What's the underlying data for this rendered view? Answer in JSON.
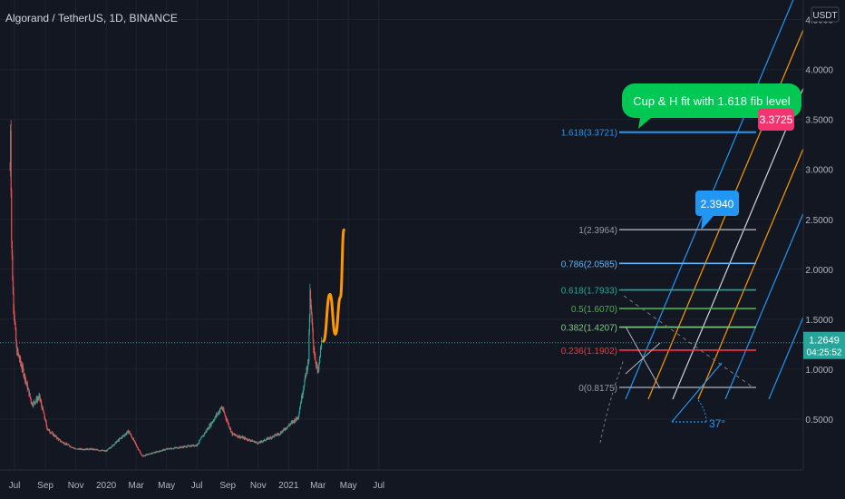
{
  "header": {
    "title": "Algorand / TetherUS, 1D, BINANCE"
  },
  "price_axis": {
    "currency_label": "USDT",
    "current_price": "1.2649",
    "countdown": "04:25:52"
  },
  "annotations": {
    "callout_text": "Cup & H fit  with 1.618  fib level",
    "target_badge": "3.3725",
    "peak_badge": "2.3940",
    "angle_label": "37°"
  },
  "fib_levels": [
    {
      "label": "1.618(3.3721)",
      "price": 3.3721,
      "color": "#2196f3"
    },
    {
      "label": "1(2.3964)",
      "price": 2.3964,
      "color": "#9598a1"
    },
    {
      "label": "0.786(2.0585)",
      "price": 2.0585,
      "color": "#64b5f6"
    },
    {
      "label": "0.618(1.7933)",
      "price": 1.7933,
      "color": "#26a69a"
    },
    {
      "label": "0.5(1.6070)",
      "price": 1.607,
      "color": "#4caf50"
    },
    {
      "label": "0.382(1.4207)",
      "price": 1.4207,
      "color": "#81c784"
    },
    {
      "label": "0.236(1.1902)",
      "price": 1.1902,
      "color": "#f23645"
    },
    {
      "label": "0(0.8175)",
      "price": 0.8175,
      "color": "#9598a1"
    }
  ],
  "colors": {
    "background": "#131722",
    "up": "#26a69a",
    "down": "#ef5350",
    "fib_channel_outer": "#2196f3",
    "fib_channel_inner": "#ff9800",
    "fib_channel_mid": "#d1d4dc",
    "projection_path": "#ff9800",
    "callout": "#00c853",
    "target_badge": "#f23570",
    "peak_badge": "#2196f3",
    "price_tag": "#26a69a"
  },
  "chart_data": {
    "type": "candlestick",
    "title": "Algorand / TetherUS, 1D, BINANCE",
    "ylim": [
      0,
      4.95
    ],
    "y_ticks": [
      "0.5000",
      "1.0000",
      "1.5000",
      "2.0000",
      "2.5000",
      "3.0000",
      "3.5000",
      "4.0000",
      "4.5000"
    ],
    "x_ticks": [
      "Jul",
      "Sep",
      "Nov",
      "2020",
      "Mar",
      "May",
      "Jul",
      "Sep",
      "Nov",
      "2021",
      "Mar",
      "May",
      "Jul"
    ],
    "price_path": [
      {
        "date": "2019-06-22",
        "price": 3.0
      },
      {
        "date": "2019-06-23",
        "price": 3.45
      },
      {
        "date": "2019-06-25",
        "price": 2.3
      },
      {
        "date": "2019-06-28",
        "price": 1.75
      },
      {
        "date": "2019-07-05",
        "price": 1.2
      },
      {
        "date": "2019-07-20",
        "price": 0.95
      },
      {
        "date": "2019-08-05",
        "price": 0.65
      },
      {
        "date": "2019-08-20",
        "price": 0.72
      },
      {
        "date": "2019-09-05",
        "price": 0.4
      },
      {
        "date": "2019-10-01",
        "price": 0.28
      },
      {
        "date": "2019-11-01",
        "price": 0.2
      },
      {
        "date": "2019-12-01",
        "price": 0.2
      },
      {
        "date": "2020-01-01",
        "price": 0.18
      },
      {
        "date": "2020-02-15",
        "price": 0.38
      },
      {
        "date": "2020-03-13",
        "price": 0.13
      },
      {
        "date": "2020-05-01",
        "price": 0.2
      },
      {
        "date": "2020-07-01",
        "price": 0.24
      },
      {
        "date": "2020-08-20",
        "price": 0.62
      },
      {
        "date": "2020-09-10",
        "price": 0.35
      },
      {
        "date": "2020-11-01",
        "price": 0.26
      },
      {
        "date": "2020-12-15",
        "price": 0.36
      },
      {
        "date": "2021-01-20",
        "price": 0.52
      },
      {
        "date": "2021-02-10",
        "price": 1.1
      },
      {
        "date": "2021-02-13",
        "price": 1.75
      },
      {
        "date": "2021-02-20",
        "price": 1.22
      },
      {
        "date": "2021-03-01",
        "price": 0.95
      },
      {
        "date": "2021-03-08",
        "price": 1.2649
      }
    ],
    "projection": [
      {
        "date": "2021-03-12",
        "price": 1.28
      },
      {
        "date": "2021-03-25",
        "price": 1.75
      },
      {
        "date": "2021-04-05",
        "price": 1.35
      },
      {
        "date": "2021-04-15",
        "price": 1.72
      },
      {
        "date": "2021-04-22",
        "price": 2.394
      }
    ],
    "current_price": 1.2649,
    "grid": true
  }
}
